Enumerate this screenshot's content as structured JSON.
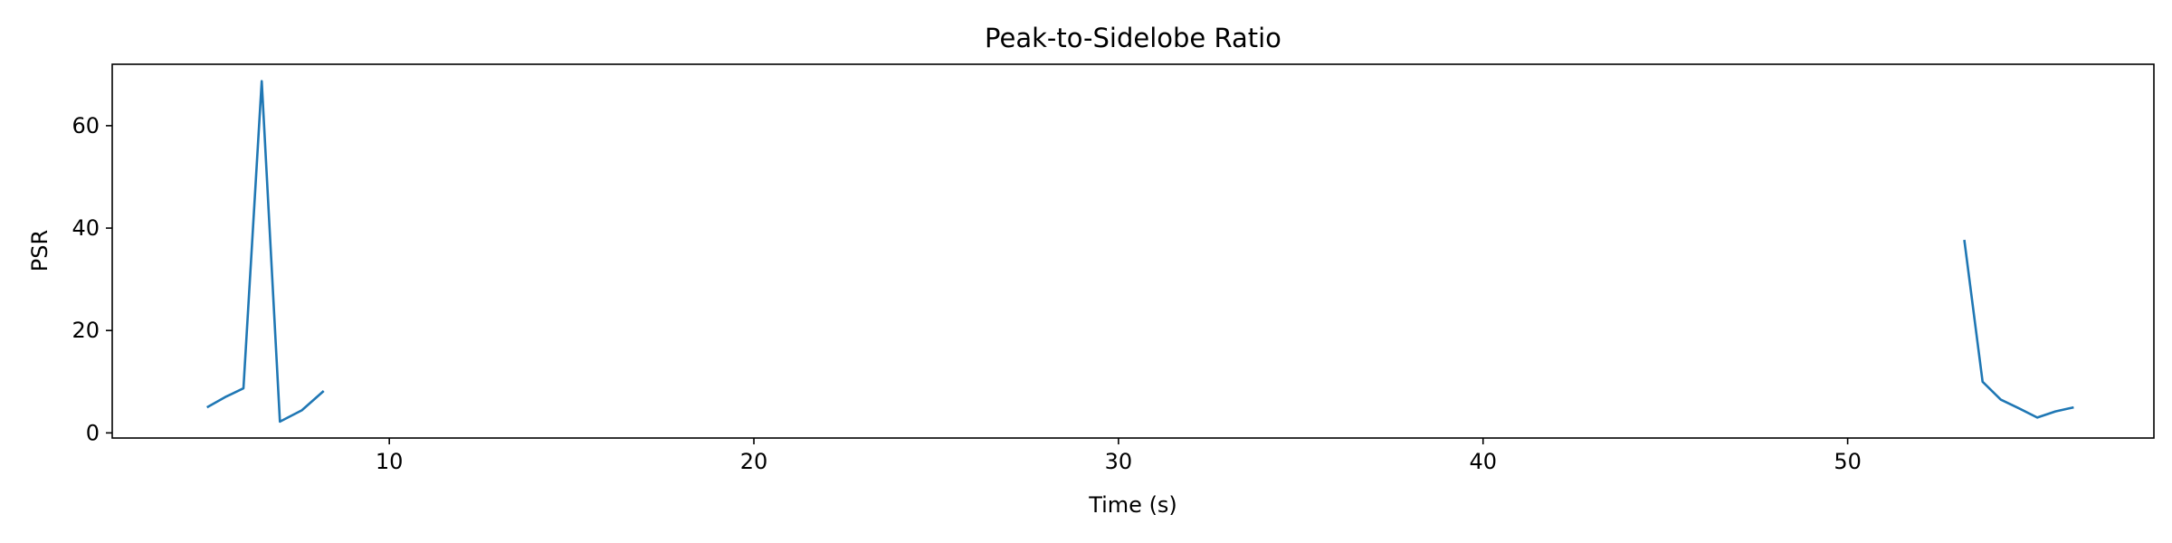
{
  "chart_data": {
    "type": "line",
    "title": "Peak-to-Sidelobe Ratio",
    "xlabel": "Time (s)",
    "ylabel": "PSR",
    "xlim": [
      2.4,
      58.4
    ],
    "ylim": [
      -1.0,
      72.0
    ],
    "xticks": [
      10,
      20,
      30,
      40,
      50
    ],
    "yticks": [
      0,
      20,
      40,
      60
    ],
    "grid": false,
    "color": "#1f77b4",
    "series": [
      {
        "segments": [
          {
            "x": [
              5.0,
              5.5,
              6.0,
              6.5,
              7.0,
              7.6,
              8.2
            ],
            "y": [
              5.0,
              7.0,
              8.7,
              68.7,
              2.2,
              4.4,
              8.2
            ]
          },
          {
            "x": [
              53.2,
              53.7,
              54.2,
              54.7,
              55.2,
              55.7,
              56.2
            ],
            "y": [
              37.7,
              10.0,
              6.5,
              4.8,
              3.0,
              4.2,
              5.0
            ]
          }
        ]
      }
    ]
  }
}
